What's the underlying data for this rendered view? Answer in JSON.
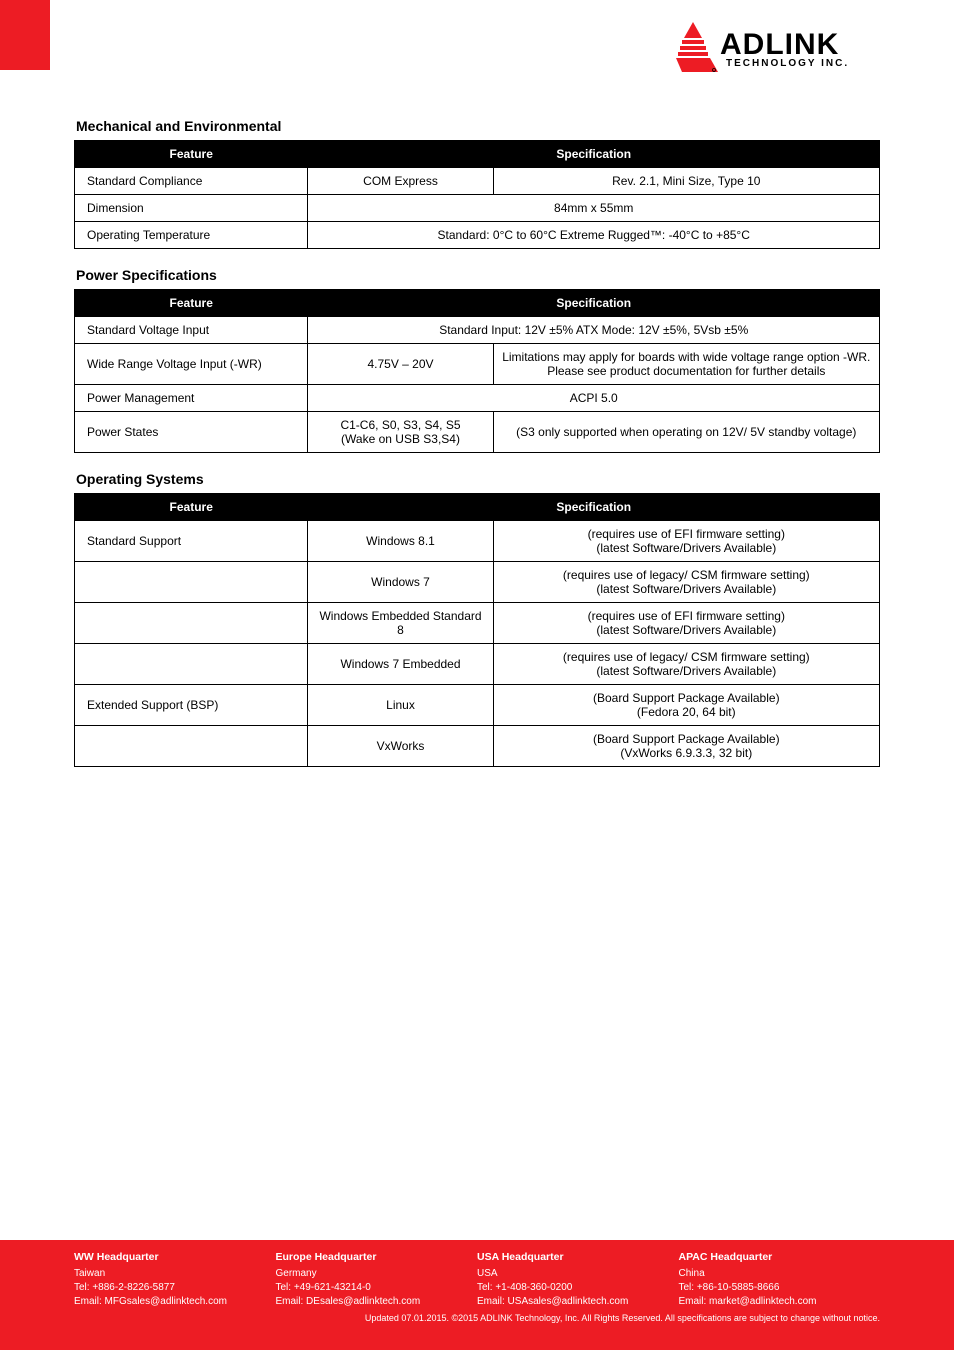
{
  "logo": {
    "main": "ADLINK",
    "sub": "TECHNOLOGY INC."
  },
  "sections": [
    {
      "title": "Mechanical and Environmental",
      "head": [
        "Feature",
        "Specification"
      ],
      "rows": [
        {
          "k": "Standard Compliance",
          "v1": "COM Express",
          "v2": "Rev. 2.1, Mini Size, Type 10"
        },
        {
          "k": "Dimension",
          "v12": "84mm x 55mm"
        },
        {
          "k": "Operating Temperature",
          "v12": "Standard: 0°C to 60°C   Extreme Rugged™: -40°C to +85°C"
        }
      ]
    },
    {
      "title": "Power Specifications",
      "head": [
        "Feature",
        "Specification"
      ],
      "rows": [
        {
          "k": "Standard Voltage Input",
          "v12": "Standard Input: 12V ±5%    ATX Mode: 12V ±5%, 5Vsb ±5%"
        },
        {
          "k": "Wide Range Voltage Input (-WR)",
          "v1": "4.75V – 20V",
          "v2": "Limitations may apply for boards with wide voltage range option -WR. Please see product documentation for further details"
        },
        {
          "k": "Power Management",
          "v12": "ACPI 5.0"
        },
        {
          "k": "Power States",
          "v1": "C1-C6, S0, S3, S4, S5\n(Wake on USB S3,S4)",
          "v2": "(S3 only supported when operating on 12V/ 5V standby voltage)"
        }
      ]
    },
    {
      "title": "Operating Systems",
      "head": [
        "Feature",
        "Specification"
      ],
      "rows": [
        {
          "k": "Standard Support",
          "v1": "Windows 8.1",
          "v2": "(requires use of EFI firmware setting)\n(latest Software/Drivers Available)"
        },
        {
          "k": "",
          "v1": "Windows 7",
          "v2": "(requires use of legacy/ CSM firmware setting)\n(latest Software/Drivers Available)"
        },
        {
          "k": "",
          "v1": "Windows Embedded Standard 8",
          "v2": "(requires use of EFI firmware setting)\n(latest Software/Drivers Available)"
        },
        {
          "k": "",
          "v1": "Windows 7 Embedded",
          "v2": "(requires use of legacy/ CSM firmware setting)\n(latest Software/Drivers Available)"
        },
        {
          "k": "Extended Support (BSP)",
          "v1": "Linux",
          "v2": "(Board Support Package Available)\n(Fedora 20, 64 bit)"
        },
        {
          "k": "",
          "v1": "VxWorks",
          "v2": "(Board Support Package Available)\n(VxWorks 6.9.3.3, 32 bit)"
        }
      ]
    }
  ],
  "footer": {
    "cols": [
      {
        "hq": "WW Headquarter",
        "c": "Taiwan",
        "t": "Tel: +886-2-8226-5877",
        "e": "Email: MFGsales@adlinktech.com"
      },
      {
        "hq": "Europe Headquarter",
        "c": "Germany",
        "t": "Tel: +49-621-43214-0",
        "e": "Email: DEsales@adlinktech.com"
      },
      {
        "hq": "USA Headquarter",
        "c": "USA",
        "t": "Tel: +1-408-360-0200",
        "e": "Email: USAsales@adlinktech.com"
      },
      {
        "hq": "APAC Headquarter",
        "c": "China",
        "t": "Tel: +86-10-5885-8666",
        "e": "Email: market@adlinktech.com"
      }
    ],
    "updated": "Updated 07.01.2015. ©2015 ADLINK Technology, Inc. All Rights Reserved. All specifications are subject to change without notice."
  }
}
